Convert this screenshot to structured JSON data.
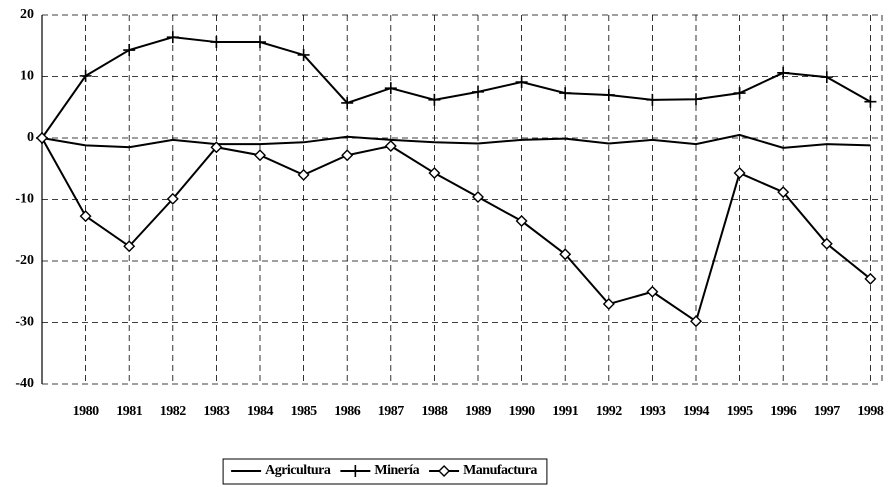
{
  "chart_data": {
    "type": "line",
    "categories": [
      null,
      "1980",
      "1981",
      "1982",
      "1983",
      "1984",
      "1985",
      "1986",
      "1987",
      "1988",
      "1989",
      "1990",
      "1991",
      "1992",
      "1993",
      "1994",
      "1995",
      "1996",
      "1997",
      "1998"
    ],
    "series": [
      {
        "name": "Agricultura",
        "color": "#000000",
        "marker": "none",
        "values": [
          0,
          -1.2,
          -1.5,
          -0.3,
          -1,
          -1,
          -0.7,
          0.2,
          -0.3,
          -0.7,
          -0.9,
          -0.3,
          -0.1,
          -0.9,
          -0.3,
          -1,
          0.5,
          -1.6,
          -1,
          -1.2
        ]
      },
      {
        "name": "Minería",
        "color": "#000000",
        "marker": "plus",
        "values": [
          0,
          10.1,
          14.3,
          16.4,
          15.6,
          15.6,
          13.5,
          5.7,
          8.1,
          6.2,
          7.5,
          9.1,
          7.3,
          7,
          6.2,
          6.3,
          7.3,
          10.6,
          9.9,
          5.9
        ]
      },
      {
        "name": "Manufactura",
        "color": "#000000",
        "marker": "diamond",
        "values": [
          0,
          -12.7,
          -17.6,
          -9.9,
          -1.5,
          -2.8,
          -6,
          -2.8,
          -1.3,
          -5.7,
          -9.6,
          -13.5,
          -18.9,
          -27,
          -25,
          -29.8,
          -5.7,
          -8.8,
          -17.2,
          -22.9
        ]
      }
    ],
    "ylim": [
      -40,
      20
    ],
    "yticks": [
      -40,
      -30,
      -20,
      -10,
      0,
      10,
      20
    ],
    "grid": true,
    "legend": "bottom"
  }
}
